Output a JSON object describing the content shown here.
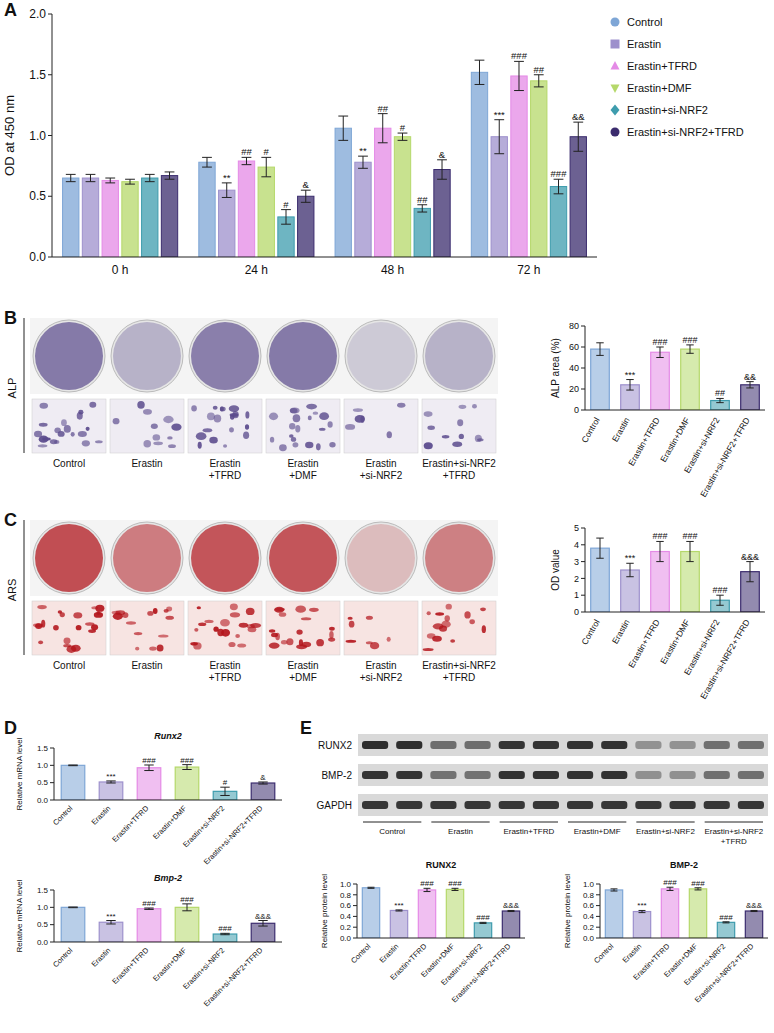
{
  "panel_labels": [
    "A",
    "B",
    "C",
    "D",
    "E"
  ],
  "chart_data": [
    {
      "type": "bar",
      "ylabel": "OD at 450 nm",
      "categories": [
        "0 h",
        "24 h",
        "48 h",
        "72 h"
      ],
      "ylim": [
        0,
        2
      ],
      "yticks": [
        {
          "value": 0,
          "label": "0.0"
        },
        {
          "value": 0.5,
          "label": "0.5"
        },
        {
          "value": 1,
          "label": "1.0"
        },
        {
          "value": 1.5,
          "label": "1.5"
        },
        {
          "value": 2,
          "label": "2.0"
        }
      ],
      "legend": "right",
      "series": [
        {
          "name": "Control",
          "color": "#7ea6d6",
          "marker": "circle",
          "values": [
            0.65,
            0.78,
            1.06,
            1.52
          ],
          "errors": [
            0.03,
            0.04,
            0.1,
            0.1
          ],
          "annotations": [
            null,
            null,
            null,
            null
          ]
        },
        {
          "name": "Erastin",
          "color": "#9d90cc",
          "marker": "square",
          "values": [
            0.65,
            0.55,
            0.78,
            0.99
          ],
          "errors": [
            0.03,
            0.06,
            0.05,
            0.14
          ],
          "annotations": [
            null,
            "**",
            "**",
            "***"
          ]
        },
        {
          "name": "Erastin+TFRD",
          "color": "#e48ae6",
          "marker": "triangle",
          "values": [
            0.63,
            0.79,
            1.06,
            1.49
          ],
          "errors": [
            0.02,
            0.03,
            0.12,
            0.12
          ],
          "annotations": [
            null,
            "##",
            "##",
            "###"
          ]
        },
        {
          "name": "Erastin+DMF",
          "color": "#b5d86a",
          "marker": "triangle-down",
          "values": [
            0.62,
            0.74,
            0.99,
            1.45
          ],
          "errors": [
            0.02,
            0.08,
            0.03,
            0.05
          ],
          "annotations": [
            null,
            "#",
            "#",
            "##"
          ]
        },
        {
          "name": "Erastin+si-NRF2",
          "color": "#3e9cad",
          "marker": "diamond",
          "values": [
            0.65,
            0.33,
            0.4,
            0.58
          ],
          "errors": [
            0.03,
            0.06,
            0.03,
            0.06
          ],
          "annotations": [
            null,
            "#",
            "##",
            "###"
          ]
        },
        {
          "name": "Erastin+si-NRF2+TFRD",
          "color": "#3b2c6e",
          "marker": "circle",
          "values": [
            0.67,
            0.5,
            0.72,
            0.99
          ],
          "errors": [
            0.03,
            0.05,
            0.08,
            0.12
          ],
          "annotations": [
            null,
            "&",
            "&",
            "&&"
          ]
        }
      ]
    },
    {
      "type": "bar",
      "ylabel": "ALP area (%)",
      "categories": [
        "Control",
        "Erastin",
        "Erastin+TFRD",
        "Erastin+DMF",
        "Erastin+si-NRF2",
        "Erastin+si-NRF2+TFRD"
      ],
      "colors": [
        "#7ea6d6",
        "#9d90cc",
        "#e48ae6",
        "#b5d86a",
        "#3e9cad",
        "#3b2c6e"
      ],
      "values": [
        58,
        24,
        55,
        58,
        9,
        24
      ],
      "errors": [
        6,
        5,
        5,
        4,
        2,
        3
      ],
      "annotations": [
        null,
        "***",
        "###",
        "###",
        "##",
        "&&"
      ],
      "ylim": [
        0,
        80
      ],
      "yticks": [
        0,
        20,
        40,
        60,
        80
      ]
    },
    {
      "type": "bar",
      "ylabel": "OD value",
      "categories": [
        "Control",
        "Erastin",
        "Erastin+TFRD",
        "Erastin+DMF",
        "Erastin+si-NRF2",
        "Erastin+si-NRF2+TFRD"
      ],
      "colors": [
        "#7ea6d6",
        "#9d90cc",
        "#e48ae6",
        "#b5d86a",
        "#3e9cad",
        "#3b2c6e"
      ],
      "values": [
        3.8,
        2.5,
        3.6,
        3.6,
        0.7,
        2.4
      ],
      "errors": [
        0.6,
        0.4,
        0.6,
        0.6,
        0.3,
        0.6
      ],
      "annotations": [
        null,
        "***",
        "###",
        "###",
        "###",
        "&&&"
      ],
      "ylim": [
        0,
        5
      ],
      "yticks": [
        0,
        1,
        2,
        3,
        4,
        5
      ]
    },
    {
      "type": "bar",
      "title": "Runx2",
      "ylabel": "Relative mRNA level",
      "categories": [
        "Control",
        "Erastin",
        "Erastin+TFRD",
        "Erastin+DMF",
        "Erastin+si-NRF2",
        "Erastin+si-NRF2+TFRD"
      ],
      "colors": [
        "#7ea6d6",
        "#9d90cc",
        "#e48ae6",
        "#b5d86a",
        "#3e9cad",
        "#3b2c6e"
      ],
      "values": [
        1.0,
        0.52,
        0.93,
        0.95,
        0.25,
        0.49
      ],
      "errors": [
        0.01,
        0.03,
        0.08,
        0.07,
        0.12,
        0.03
      ],
      "annotations": [
        null,
        "***",
        "###",
        "###",
        "#",
        "&"
      ],
      "ylim": [
        0,
        1.5
      ],
      "yticks": [
        {
          "value": 0,
          "label": "0.0"
        },
        {
          "value": 0.5,
          "label": "0.5"
        },
        {
          "value": 1,
          "label": "1.0"
        },
        {
          "value": 1.5,
          "label": "1.5"
        }
      ]
    },
    {
      "type": "bar",
      "title": "Bmp-2",
      "ylabel": "Relative mRNA level",
      "categories": [
        "Control",
        "Erastin",
        "Erastin+TFRD",
        "Erastin+DMF",
        "Erastin+si-NRF2",
        "Erastin+si-NRF2+TFRD"
      ],
      "colors": [
        "#7ea6d6",
        "#9d90cc",
        "#e48ae6",
        "#b5d86a",
        "#3e9cad",
        "#3b2c6e"
      ],
      "values": [
        1.0,
        0.57,
        0.96,
        1.0,
        0.23,
        0.54
      ],
      "errors": [
        0.01,
        0.05,
        0.02,
        0.1,
        0.02,
        0.08
      ],
      "annotations": [
        null,
        "***",
        "###",
        "###",
        "###",
        "&&&"
      ],
      "ylim": [
        0,
        1.5
      ],
      "yticks": [
        {
          "value": 0,
          "label": "0.0"
        },
        {
          "value": 0.5,
          "label": "0.5"
        },
        {
          "value": 1,
          "label": "1.0"
        },
        {
          "value": 1.5,
          "label": "1.5"
        }
      ]
    },
    {
      "type": "bar",
      "title": "RUNX2",
      "ylabel": "Relative protein level",
      "categories": [
        "Control",
        "Erastin",
        "Erastin+TFRD",
        "Erastin+DMF",
        "Erastin+si-NRF2",
        "Erastin+si-NRF2+TFRD"
      ],
      "colors": [
        "#7ea6d6",
        "#9d90cc",
        "#e48ae6",
        "#b5d86a",
        "#3e9cad",
        "#3b2c6e"
      ],
      "values": [
        0.93,
        0.51,
        0.89,
        0.9,
        0.28,
        0.5
      ],
      "errors": [
        0.01,
        0.01,
        0.03,
        0.02,
        0.01,
        0.01
      ],
      "annotations": [
        null,
        "***",
        "###",
        "###",
        "###",
        "&&&"
      ],
      "ylim": [
        0,
        1
      ],
      "yticks": [
        {
          "value": 0,
          "label": "0.0"
        },
        {
          "value": 0.2,
          "label": "0.2"
        },
        {
          "value": 0.4,
          "label": "0.4"
        },
        {
          "value": 0.6,
          "label": "0.6"
        },
        {
          "value": 0.8,
          "label": "0.8"
        },
        {
          "value": 1,
          "label": "1.0"
        }
      ]
    },
    {
      "type": "bar",
      "title": "BMP-2",
      "ylabel": "Relative protein level",
      "categories": [
        "Control",
        "Erastin",
        "Erastin+TFRD",
        "Erastin+DMF",
        "Erastin+si-NRF2",
        "Erastin+si-NRF2+TFRD"
      ],
      "colors": [
        "#7ea6d6",
        "#9d90cc",
        "#e48ae6",
        "#b5d86a",
        "#3e9cad",
        "#3b2c6e"
      ],
      "values": [
        0.89,
        0.49,
        0.91,
        0.91,
        0.29,
        0.5
      ],
      "errors": [
        0.02,
        0.02,
        0.03,
        0.02,
        0.01,
        0.01
      ],
      "annotations": [
        null,
        "***",
        "###",
        "###",
        "###",
        "&&&"
      ],
      "ylim": [
        0,
        1
      ],
      "yticks": [
        {
          "value": 0,
          "label": "0.0"
        },
        {
          "value": 0.2,
          "label": "0.2"
        },
        {
          "value": 0.4,
          "label": "0.4"
        },
        {
          "value": 0.6,
          "label": "0.6"
        },
        {
          "value": 0.8,
          "label": "0.8"
        },
        {
          "value": 1,
          "label": "1.0"
        }
      ]
    }
  ],
  "images": [
    {
      "row_label": "ALP",
      "labels": [
        "Control",
        "Erastin",
        "Erastin +TFRD",
        "Erastin +DMF",
        "Erastin +si-NRF2",
        "Erastin+si-NRF2 +TFRD"
      ]
    },
    {
      "row_label": "ARS",
      "labels": [
        "Control",
        "Erastin",
        "Erastin +TFRD",
        "Erastin +DMF",
        "Erastin +si-NRF2",
        "Erastin+si-NRF2 +TFRD"
      ]
    }
  ],
  "blot": {
    "rows": [
      "RUNX2",
      "BMP-2",
      "GAPDH"
    ],
    "lane_labels": [
      "Control",
      "Erastin",
      "Erastin+TFRD",
      "Erastin+DMF",
      "Erastin+si-NRF2",
      "Erastin+si-NRF2 +TFRD"
    ]
  }
}
